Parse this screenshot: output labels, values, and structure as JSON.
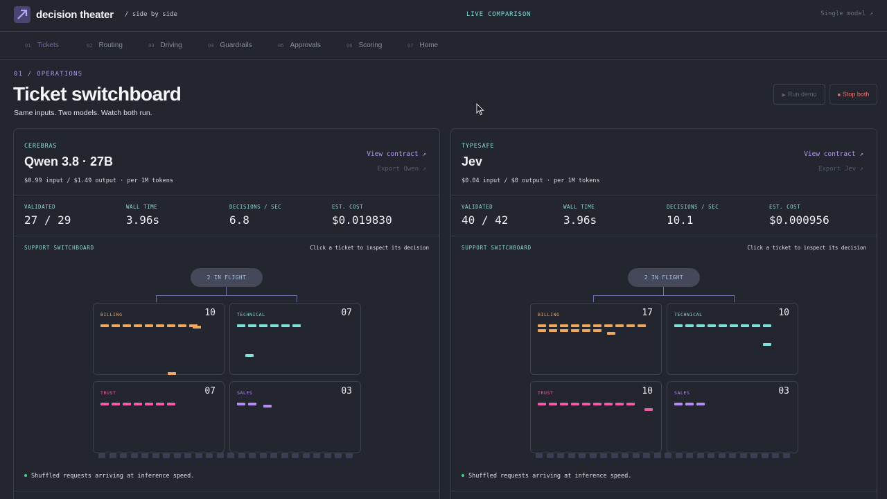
{
  "app": {
    "brand": "decision theater",
    "brand_sub": "/ side by side",
    "live": "LIVE COMPARISON",
    "single": "Single model ↗"
  },
  "nav": [
    {
      "num": "01",
      "label": "Tickets"
    },
    {
      "num": "02",
      "label": "Routing"
    },
    {
      "num": "03",
      "label": "Driving"
    },
    {
      "num": "04",
      "label": "Guardrails"
    },
    {
      "num": "05",
      "label": "Approvals"
    },
    {
      "num": "06",
      "label": "Scoring"
    },
    {
      "num": "07",
      "label": "Home"
    }
  ],
  "header": {
    "eyebrow": "01 / OPERATIONS",
    "title": "Ticket switchboard",
    "subtitle": "Same inputs. Two models. Watch both run.",
    "run_label": "Run demo",
    "stop_label": "Stop both"
  },
  "panels": [
    {
      "provider": "CEREBRAS",
      "model": "Qwen 3.8 · 27B",
      "price": "$0.99 input / $1.49 output · per 1M tokens",
      "view_contract": "View contract ↗",
      "export": "Export Qwen ↗",
      "stats": [
        {
          "label": "VALIDATED",
          "value": "27 / 29"
        },
        {
          "label": "WALL TIME",
          "value": "3.96s"
        },
        {
          "label": "DECISIONS / SEC",
          "value": "6.8"
        },
        {
          "label": "EST. COST",
          "value": "$0.019830"
        }
      ],
      "switchboard_label": "SUPPORT SWITCHBOARD",
      "switchboard_hint": "Click a ticket to inspect its decision",
      "inflight": "2 IN FLIGHT",
      "queues": [
        {
          "name": "BILLING",
          "count": "10"
        },
        {
          "name": "TECHNICAL",
          "count": "07"
        },
        {
          "name": "TRUST",
          "count": "07"
        },
        {
          "name": "SALES",
          "count": "03"
        }
      ],
      "footer": "Shuffled requests arriving at inference speed."
    },
    {
      "provider": "TYPESAFE",
      "model": "Jev",
      "price": "$0.04 input / $0 output · per 1M tokens",
      "view_contract": "View contract ↗",
      "export": "Export Jev ↗",
      "stats": [
        {
          "label": "VALIDATED",
          "value": "40 / 42"
        },
        {
          "label": "WALL TIME",
          "value": "3.96s"
        },
        {
          "label": "DECISIONS / SEC",
          "value": "10.1"
        },
        {
          "label": "EST. COST",
          "value": "$0.000956"
        }
      ],
      "switchboard_label": "SUPPORT SWITCHBOARD",
      "switchboard_hint": "Click a ticket to inspect its decision",
      "inflight": "2 IN FLIGHT",
      "queues": [
        {
          "name": "BILLING",
          "count": "17"
        },
        {
          "name": "TECHNICAL",
          "count": "10"
        },
        {
          "name": "TRUST",
          "count": "10"
        },
        {
          "name": "SALES",
          "count": "03"
        }
      ],
      "footer": "Shuffled requests arriving at inference speed."
    }
  ],
  "colors": {
    "billing": "#f0a860",
    "technical": "#7fe3dc",
    "trust": "#ee5fa8",
    "sales": "#b58cf0"
  }
}
